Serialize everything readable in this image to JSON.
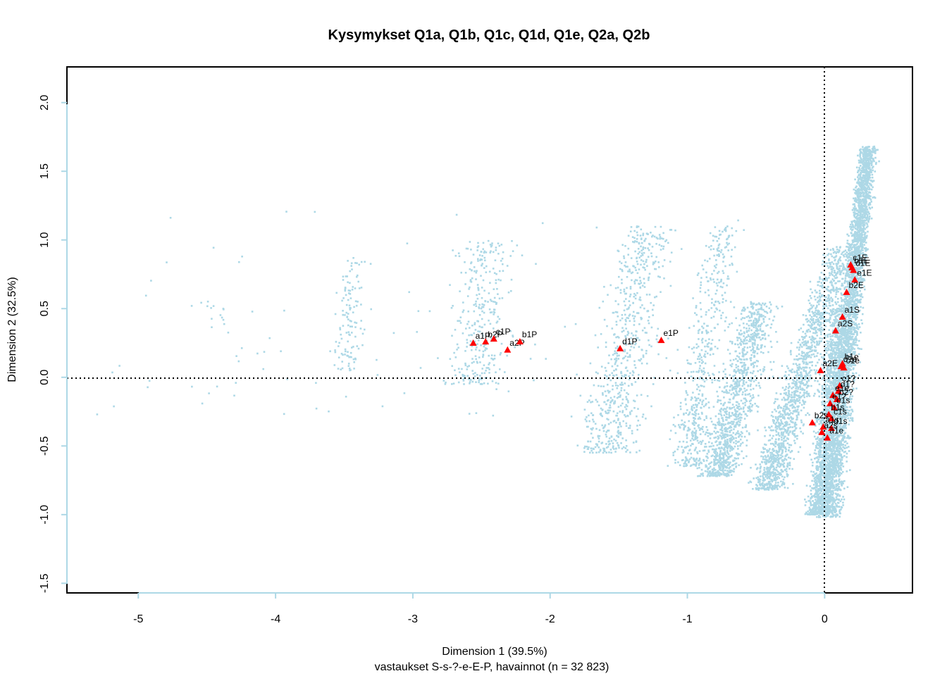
{
  "chart_data": {
    "type": "scatter",
    "title": "Kysymykset Q1a, Q1b, Q1c, Q1d, Q1e, Q2a, Q2b",
    "xlabel": "Dimension 1 (39.5%)",
    "xlabel2": "vastaukset S-s-?-e-E-P, havainnot (n = 32 823)",
    "ylabel": "Dimension 2 (32.5%)",
    "xlim": [
      -5.52,
      0.64
    ],
    "ylim": [
      -1.57,
      2.26
    ],
    "x_ticks": [
      "-5",
      "-4",
      "-3",
      "-2",
      "-1",
      "0"
    ],
    "x_tick_values": [
      -5,
      -4,
      -3,
      -2,
      -1,
      0
    ],
    "y_ticks": [
      "-1.5",
      "-1.0",
      "-0.5",
      "0.0",
      "0.5",
      "1.0",
      "1.5",
      "2.0"
    ],
    "y_tick_values": [
      -1.5,
      -1.0,
      -0.5,
      0.0,
      0.5,
      1.0,
      1.5,
      2.0
    ],
    "reference_lines": {
      "x": 0,
      "y": 0
    },
    "colors": {
      "observations": "#add8e6",
      "categories": "#ff0000",
      "axis_color": "#add8e6"
    },
    "categories": [
      {
        "label": "a1P",
        "x": -2.56,
        "y": 0.25
      },
      {
        "label": "b2P",
        "x": -2.47,
        "y": 0.26
      },
      {
        "label": "c1P",
        "x": -2.41,
        "y": 0.28
      },
      {
        "label": "a2P",
        "x": -2.31,
        "y": 0.2
      },
      {
        "label": "b1P",
        "x": -2.22,
        "y": 0.26
      },
      {
        "label": "d1P",
        "x": -1.49,
        "y": 0.21
      },
      {
        "label": "e1P",
        "x": -1.19,
        "y": 0.27
      },
      {
        "label": "c1E",
        "x": 0.19,
        "y": 0.82
      },
      {
        "label": "b1E",
        "x": 0.2,
        "y": 0.8
      },
      {
        "label": "d1E",
        "x": 0.21,
        "y": 0.78
      },
      {
        "label": "e1E",
        "x": 0.22,
        "y": 0.71
      },
      {
        "label": "b2E",
        "x": 0.16,
        "y": 0.62
      },
      {
        "label": "a1S",
        "x": 0.13,
        "y": 0.44
      },
      {
        "label": "a2S",
        "x": 0.08,
        "y": 0.34
      },
      {
        "label": "a2E",
        "x": -0.03,
        "y": 0.05
      },
      {
        "label": "b1e",
        "x": 0.13,
        "y": 0.1
      },
      {
        "label": "c1e",
        "x": 0.14,
        "y": 0.07
      },
      {
        "label": "d1e",
        "x": 0.12,
        "y": 0.08
      },
      {
        "label": "c1?",
        "x": 0.11,
        "y": -0.06
      },
      {
        "label": "d1?",
        "x": 0.1,
        "y": -0.1
      },
      {
        "label": "e1e",
        "x": 0.06,
        "y": -0.13
      },
      {
        "label": "b2?",
        "x": 0.09,
        "y": -0.16
      },
      {
        "label": "e1?",
        "x": 0.04,
        "y": -0.19
      },
      {
        "label": "e1s",
        "x": 0.07,
        "y": -0.22
      },
      {
        "label": "b1s",
        "x": 0.03,
        "y": -0.27
      },
      {
        "label": "c1s",
        "x": 0.05,
        "y": -0.3
      },
      {
        "label": "b2s",
        "x": -0.09,
        "y": -0.33
      },
      {
        "label": "a1s",
        "x": -0.01,
        "y": -0.36
      },
      {
        "label": "d1s",
        "x": 0.05,
        "y": -0.37
      },
      {
        "label": "a2s",
        "x": -0.02,
        "y": -0.4
      },
      {
        "label": "a1e",
        "x": 0.02,
        "y": -0.44
      }
    ]
  }
}
